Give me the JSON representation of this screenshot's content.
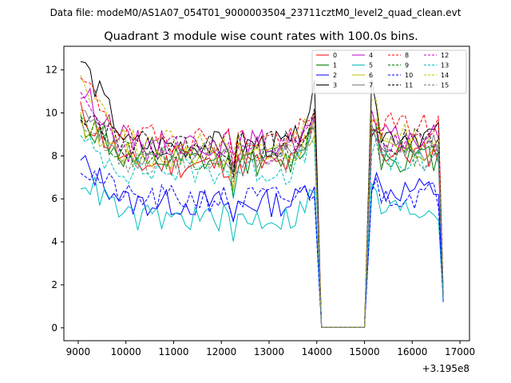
{
  "chart_data": {
    "type": "line",
    "suptitle": "Data file: modeM0/AS1A07_054T01_9000003504_23711cztM0_level2_quad_clean.evt",
    "title": "Quadrant 3 module wise count rates with 100.0s bins.",
    "xlabel": "",
    "ylabel": "",
    "x_offset_label": "+3.195e8",
    "xlim": [
      8700,
      17200
    ],
    "ylim": [
      -0.6,
      13.1
    ],
    "x_ticks": [
      9000,
      10000,
      11000,
      12000,
      13000,
      14000,
      15000,
      16000,
      17000
    ],
    "y_ticks": [
      0,
      2,
      4,
      6,
      8,
      10,
      12
    ],
    "x_start": 9050,
    "bin": 100,
    "gap": {
      "from": 14050,
      "to": 15050
    },
    "end_x": 16650,
    "legend_position": "upper-right",
    "series": [
      {
        "name": "0",
        "color": "#ff0000",
        "dash": "solid",
        "init": 10.0,
        "seg1": 7.6,
        "peak1": 9.5,
        "seg2": 8.1,
        "end": 1.4,
        "seed": 11
      },
      {
        "name": "1",
        "color": "#008000",
        "dash": "solid",
        "init": 9.6,
        "seg1": 7.7,
        "peak1": 9.3,
        "seg2": 7.9,
        "end": 1.4,
        "seed": 12
      },
      {
        "name": "2",
        "color": "#0000ff",
        "dash": "solid",
        "init": 7.7,
        "seg1": 5.8,
        "peak1": 6.9,
        "seg2": 6.4,
        "end": 1.2,
        "seed": 13
      },
      {
        "name": "3",
        "color": "#000000",
        "dash": "solid",
        "init": 12.5,
        "seg1": 8.5,
        "peak1": 10.9,
        "seg2": 9.0,
        "end": 1.6,
        "seed": 14
      },
      {
        "name": "4",
        "color": "#c000c0",
        "dash": "solid",
        "init": 11.0,
        "seg1": 8.6,
        "peak1": 9.6,
        "seg2": 8.8,
        "end": 1.5,
        "seed": 15
      },
      {
        "name": "5",
        "color": "#00bfbf",
        "dash": "solid",
        "init": 7.0,
        "seg1": 5.1,
        "peak1": 6.3,
        "seg2": 5.5,
        "end": 1.3,
        "seed": 16
      },
      {
        "name": "6",
        "color": "#bfbf00",
        "dash": "solid",
        "init": 9.5,
        "seg1": 8.0,
        "peak1": 9.3,
        "seg2": 8.2,
        "end": 1.5,
        "seed": 17
      },
      {
        "name": "7",
        "color": "#808080",
        "dash": "solid",
        "init": 9.8,
        "seg1": 8.0,
        "peak1": 9.3,
        "seg2": 8.4,
        "end": 1.5,
        "seed": 18
      },
      {
        "name": "8",
        "color": "#ff0000",
        "dash": "dashed",
        "init": 11.5,
        "seg1": 8.8,
        "peak1": 9.7,
        "seg2": 9.4,
        "end": 1.6,
        "seed": 19
      },
      {
        "name": "9",
        "color": "#008000",
        "dash": "dashed",
        "init": 9.9,
        "seg1": 8.0,
        "peak1": 9.2,
        "seg2": 8.1,
        "end": 1.5,
        "seed": 20
      },
      {
        "name": "10",
        "color": "#0000ff",
        "dash": "dashed",
        "init": 7.5,
        "seg1": 6.0,
        "peak1": 6.5,
        "seg2": 6.2,
        "end": 1.3,
        "seed": 21
      },
      {
        "name": "11",
        "color": "#000000",
        "dash": "dashed",
        "init": 10.2,
        "seg1": 8.5,
        "peak1": 9.6,
        "seg2": 8.7,
        "end": 1.6,
        "seed": 22
      },
      {
        "name": "12",
        "color": "#c000c0",
        "dash": "dashed",
        "init": 10.4,
        "seg1": 8.3,
        "peak1": 9.4,
        "seg2": 8.5,
        "end": 1.5,
        "seed": 23
      },
      {
        "name": "13",
        "color": "#00bfbf",
        "dash": "dashed",
        "init": 8.6,
        "seg1": 7.3,
        "peak1": 8.6,
        "seg2": 7.6,
        "end": 1.4,
        "seed": 24
      },
      {
        "name": "14",
        "color": "#bfbf00",
        "dash": "dashed",
        "init": 11.6,
        "seg1": 8.6,
        "peak1": 10.0,
        "seg2": 8.9,
        "end": 1.6,
        "seed": 25
      },
      {
        "name": "15",
        "color": "#808080",
        "dash": "dashed",
        "init": 9.7,
        "seg1": 7.8,
        "peak1": 9.0,
        "seg2": 8.0,
        "end": 1.5,
        "seed": 26
      }
    ]
  }
}
